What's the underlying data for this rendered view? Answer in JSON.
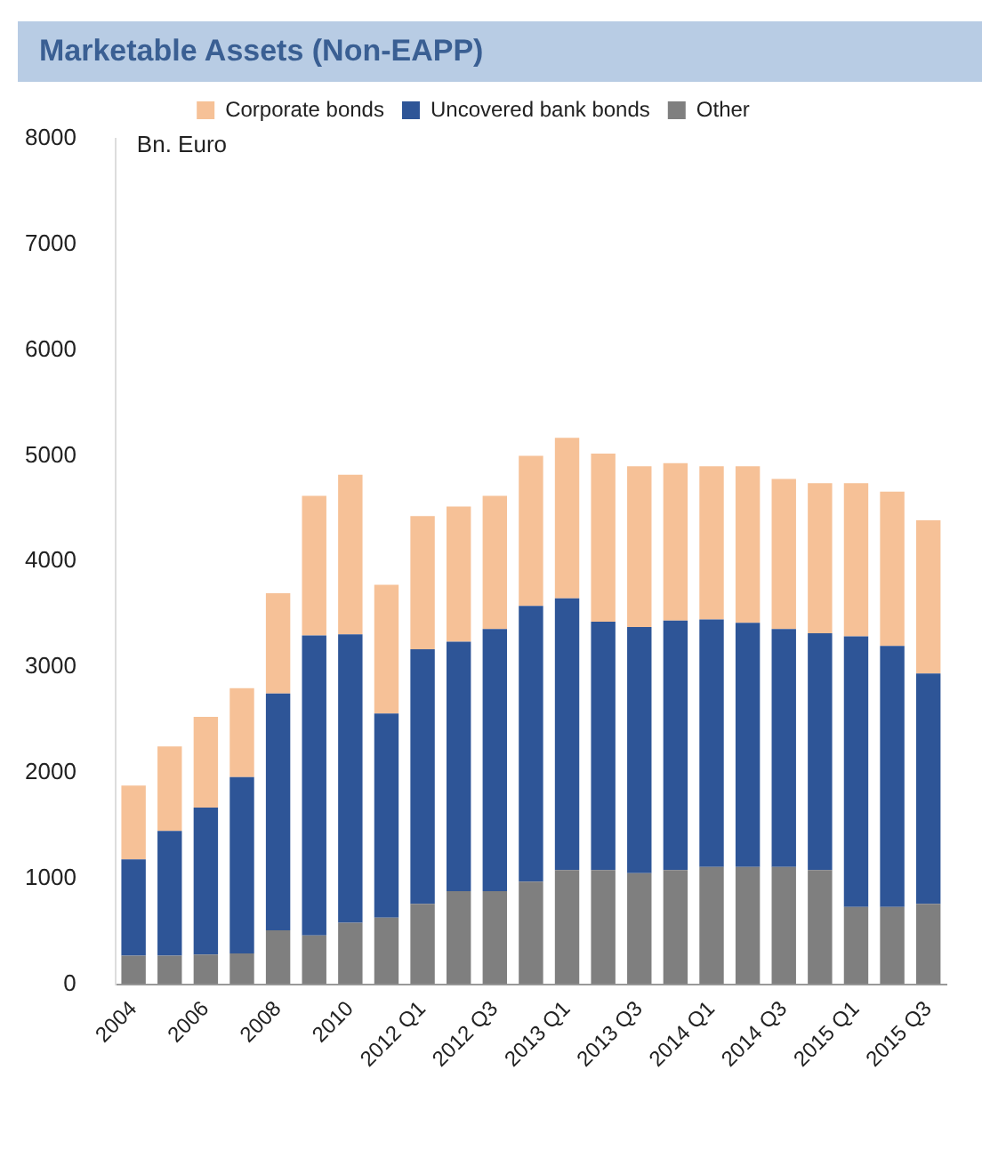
{
  "chart_data": {
    "type": "bar",
    "title": "Marketable Assets (Non-EAPP)",
    "ylabel": "Bn. Euro",
    "stacked": true,
    "legend": "top",
    "grid": false,
    "categories": [
      "2004",
      null,
      "2006",
      null,
      "2008",
      null,
      "2010",
      null,
      "2012 Q1",
      null,
      "2012 Q3",
      null,
      "2013 Q1",
      null,
      "2013 Q3",
      null,
      "2014 Q1",
      null,
      "2014 Q3",
      null,
      "2015 Q1",
      null,
      "2015 Q3"
    ],
    "ylim": [
      0,
      8000
    ],
    "yticks": [
      0,
      1000,
      2000,
      3000,
      4000,
      5000,
      6000,
      7000,
      8000
    ],
    "series": [
      {
        "name": "Other",
        "color": "#7f7f7f",
        "values": [
          270,
          270,
          280,
          290,
          510,
          460,
          580,
          630,
          760,
          880,
          880,
          970,
          1080,
          1080,
          1050,
          1080,
          1110,
          1110,
          1110,
          1080,
          730,
          730,
          760
        ]
      },
      {
        "name": "Uncovered bank bonds",
        "color": "#2e5597",
        "values": [
          910,
          1180,
          1390,
          1670,
          2240,
          2840,
          2730,
          1930,
          2410,
          2360,
          2480,
          2610,
          2570,
          2350,
          2330,
          2360,
          2340,
          2310,
          2250,
          2240,
          2560,
          2470,
          2180
        ]
      },
      {
        "name": "Corporate bonds",
        "color": "#f6c197",
        "values": [
          700,
          800,
          860,
          840,
          950,
          1320,
          1510,
          1220,
          1260,
          1280,
          1260,
          1420,
          1520,
          1590,
          1520,
          1490,
          1450,
          1480,
          1420,
          1420,
          1450,
          1460,
          1450
        ]
      }
    ]
  }
}
